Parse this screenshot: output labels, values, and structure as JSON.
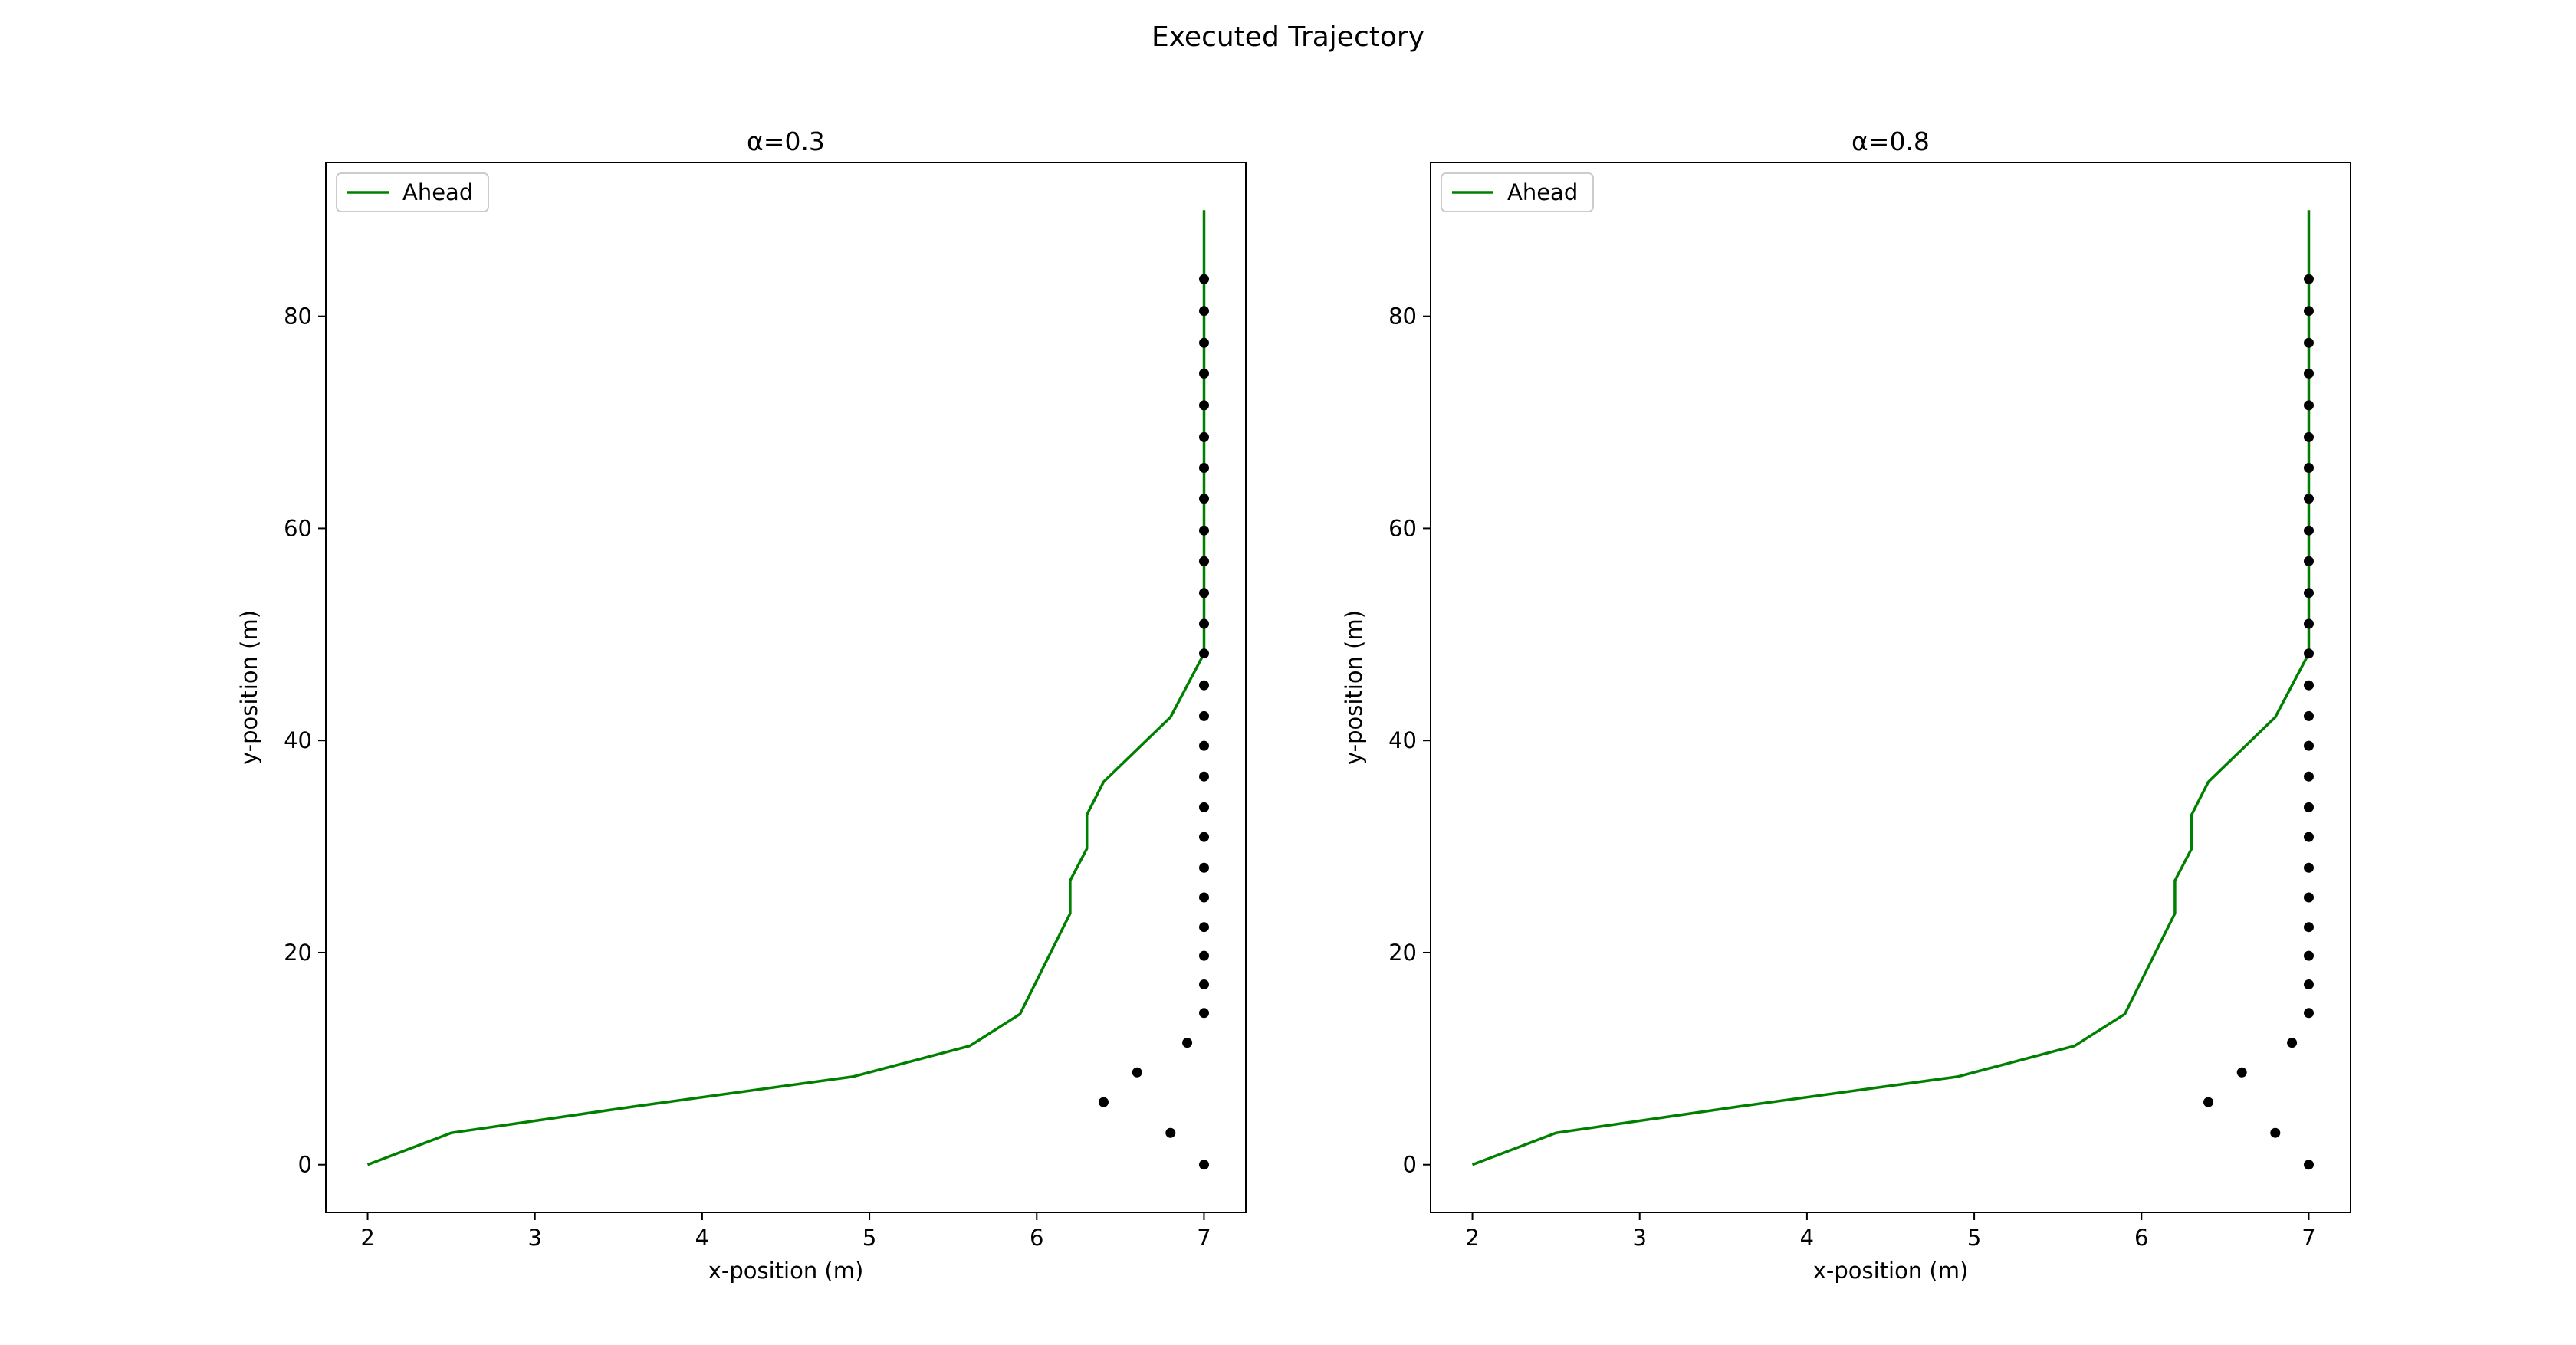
{
  "figure": {
    "suptitle": "Executed Trajectory"
  },
  "chart_data": [
    {
      "type": "line",
      "title": "α=0.3",
      "xlabel": "x-position (m)",
      "ylabel": "y-position (m)",
      "xlim": [
        1.75,
        7.25
      ],
      "ylim": [
        -4.5,
        94.5
      ],
      "xticks": [
        2,
        3,
        4,
        5,
        6,
        7
      ],
      "yticks": [
        0,
        20,
        40,
        60,
        80
      ],
      "grid": false,
      "legend_position": "upper-left",
      "series": [
        {
          "name": "Ahead",
          "kind": "line",
          "color": "#008000",
          "x": [
            2.0,
            2.5,
            3.6,
            4.9,
            5.6,
            5.9,
            6.2,
            6.2,
            6.3,
            6.3,
            6.4,
            6.8,
            7.0,
            7.0
          ],
          "y": [
            0.0,
            3.0,
            5.5,
            8.3,
            11.2,
            14.2,
            23.7,
            26.8,
            29.8,
            33.0,
            36.1,
            42.2,
            48.2,
            90.0
          ]
        },
        {
          "kind": "scatter",
          "color": "#000000",
          "x": [
            7.0,
            6.8,
            6.4,
            6.6,
            6.9,
            7.0,
            7.0,
            7.0,
            7.0,
            7.0,
            7.0,
            7.0,
            7.0,
            7.0,
            7.0,
            7.0,
            7.0,
            7.0,
            7.0,
            7.0,
            7.0,
            7.0,
            7.0,
            7.0,
            7.0,
            7.0,
            7.0,
            7.0,
            7.0,
            7.0
          ],
          "y": [
            0.0,
            3.0,
            5.9,
            8.7,
            11.5,
            14.3,
            17.0,
            19.7,
            22.4,
            25.2,
            28.0,
            30.9,
            33.7,
            36.6,
            39.5,
            42.3,
            45.2,
            48.2,
            51.0,
            53.9,
            56.9,
            59.8,
            62.8,
            65.7,
            68.6,
            71.6,
            74.6,
            77.5,
            80.5,
            83.5
          ]
        }
      ]
    },
    {
      "type": "line",
      "title": "α=0.8",
      "xlabel": "x-position (m)",
      "ylabel": "y-position (m)",
      "xlim": [
        1.75,
        7.25
      ],
      "ylim": [
        -4.5,
        94.5
      ],
      "xticks": [
        2,
        3,
        4,
        5,
        6,
        7
      ],
      "yticks": [
        0,
        20,
        40,
        60,
        80
      ],
      "grid": false,
      "legend_position": "upper-left",
      "series": [
        {
          "name": "Ahead",
          "kind": "line",
          "color": "#008000",
          "x": [
            2.0,
            2.5,
            3.6,
            4.9,
            5.6,
            5.9,
            6.2,
            6.2,
            6.3,
            6.3,
            6.4,
            6.8,
            7.0,
            7.0
          ],
          "y": [
            0.0,
            3.0,
            5.5,
            8.3,
            11.2,
            14.2,
            23.7,
            26.8,
            29.8,
            33.0,
            36.1,
            42.2,
            48.2,
            90.0
          ]
        },
        {
          "kind": "scatter",
          "color": "#000000",
          "x": [
            7.0,
            6.8,
            6.4,
            6.6,
            6.9,
            7.0,
            7.0,
            7.0,
            7.0,
            7.0,
            7.0,
            7.0,
            7.0,
            7.0,
            7.0,
            7.0,
            7.0,
            7.0,
            7.0,
            7.0,
            7.0,
            7.0,
            7.0,
            7.0,
            7.0,
            7.0,
            7.0,
            7.0,
            7.0,
            7.0
          ],
          "y": [
            0.0,
            3.0,
            5.9,
            8.7,
            11.5,
            14.3,
            17.0,
            19.7,
            22.4,
            25.2,
            28.0,
            30.9,
            33.7,
            36.6,
            39.5,
            42.3,
            45.2,
            48.2,
            51.0,
            53.9,
            56.9,
            59.8,
            62.8,
            65.7,
            68.6,
            71.6,
            74.6,
            77.5,
            80.5,
            83.5
          ]
        }
      ]
    }
  ]
}
